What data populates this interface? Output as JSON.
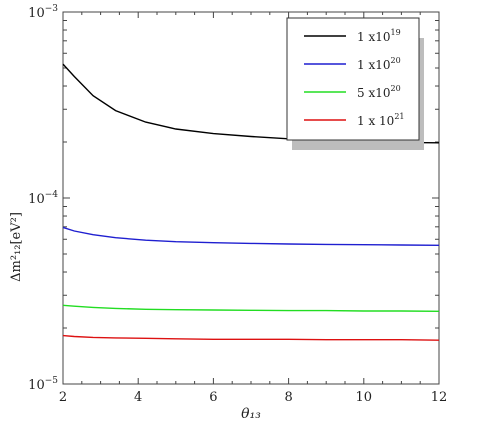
{
  "chart_data": {
    "type": "line",
    "title": "",
    "xlabel": "θ₁₃",
    "ylabel": "Δm²₁₂[eV²]",
    "xlim": [
      2,
      12
    ],
    "ylim": [
      1e-05,
      0.001
    ],
    "yscale": "log",
    "grid": false,
    "legend_position": "top-right",
    "x_ticks": [
      {
        "value": 2,
        "label": "2"
      },
      {
        "value": 4,
        "label": "4"
      },
      {
        "value": 6,
        "label": "6"
      },
      {
        "value": 8,
        "label": "8"
      },
      {
        "value": 10,
        "label": "10"
      },
      {
        "value": 12,
        "label": "12"
      }
    ],
    "y_ticks": [
      {
        "value": 1e-05,
        "base": "10",
        "exp": "−5"
      },
      {
        "value": 0.0001,
        "base": "10",
        "exp": "−4"
      },
      {
        "value": 0.001,
        "base": "10",
        "exp": "−3"
      }
    ],
    "x": [
      2,
      2.3,
      2.8,
      3.4,
      4.2,
      5,
      6,
      7,
      8,
      9,
      10,
      11,
      12
    ],
    "series": [
      {
        "name": "1 x10",
        "name_exp": "19",
        "color": "#000000",
        "values": [
          0.000525,
          0.00045,
          0.000355,
          0.000295,
          0.000256,
          0.000235,
          0.000222,
          0.000214,
          0.000208,
          0.000204,
          0.000201,
          0.000199,
          0.000198
        ]
      },
      {
        "name": "1 x10",
        "name_exp": "20",
        "color": "#1f1fd0",
        "values": [
          6.95e-05,
          6.65e-05,
          6.35e-05,
          6.12e-05,
          5.93e-05,
          5.82e-05,
          5.75e-05,
          5.7e-05,
          5.66e-05,
          5.63e-05,
          5.61e-05,
          5.59e-05,
          5.57e-05
        ]
      },
      {
        "name": "5 x10",
        "name_exp": "20",
        "color": "#22dd22",
        "values": [
          2.65e-05,
          2.62e-05,
          2.58e-05,
          2.55e-05,
          2.52e-05,
          2.51e-05,
          2.5e-05,
          2.49e-05,
          2.48e-05,
          2.48e-05,
          2.47e-05,
          2.47e-05,
          2.46e-05
        ]
      },
      {
        "name": "1 x 10",
        "name_exp": "21",
        "color": "#dd1111",
        "values": [
          1.82e-05,
          1.8e-05,
          1.78e-05,
          1.77e-05,
          1.76e-05,
          1.75e-05,
          1.74e-05,
          1.74e-05,
          1.74e-05,
          1.73e-05,
          1.73e-05,
          1.73e-05,
          1.72e-05
        ]
      }
    ]
  }
}
